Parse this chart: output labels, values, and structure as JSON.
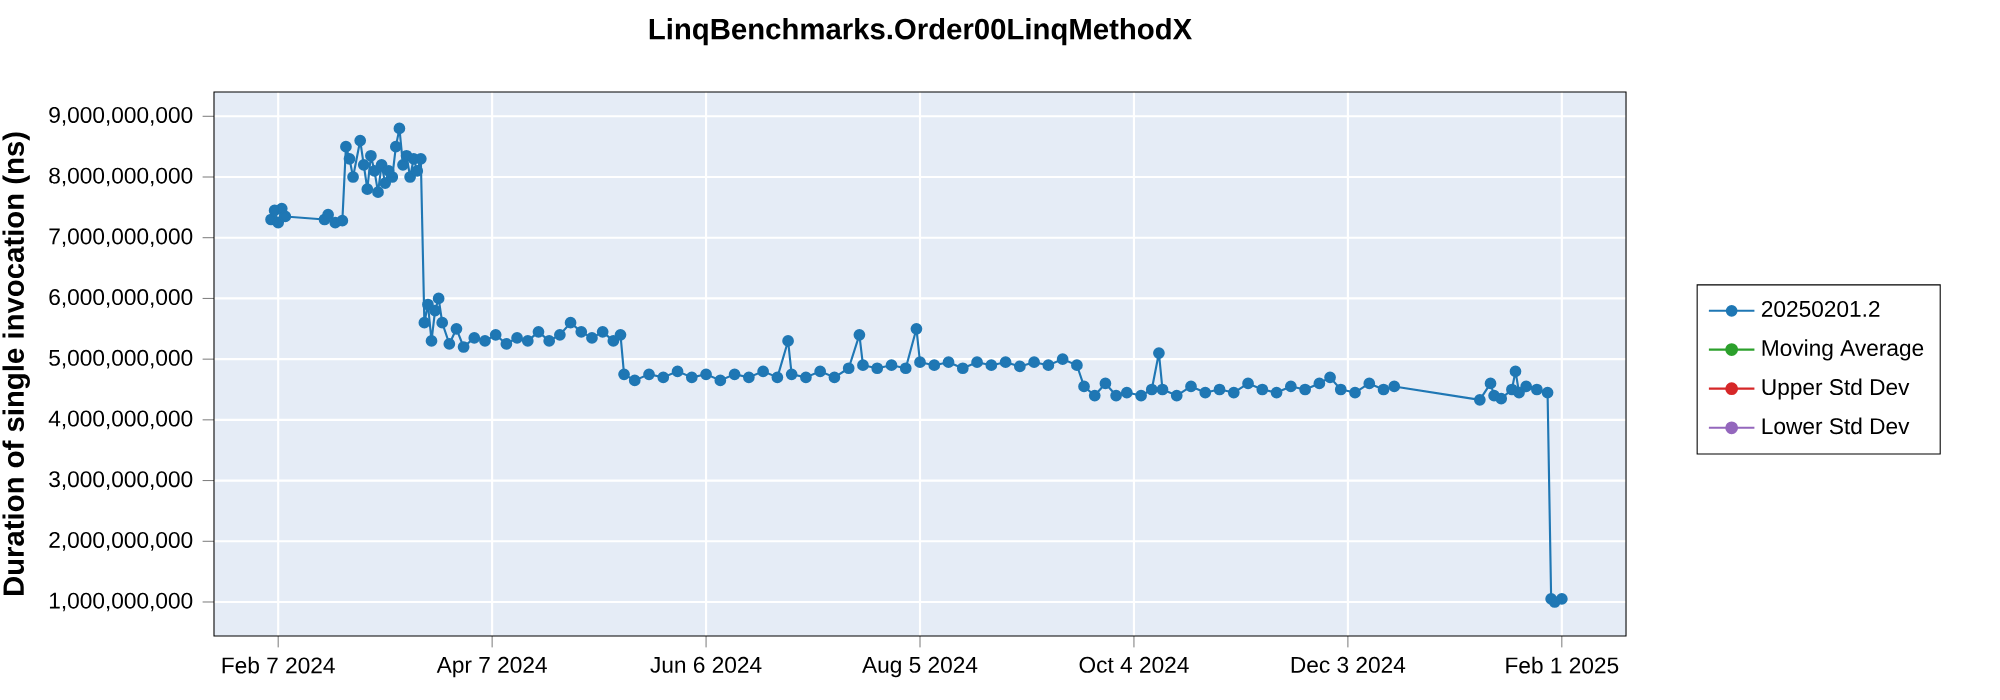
{
  "chart_data": {
    "type": "line",
    "title": "LinqBenchmarks.Order00LinqMethodX",
    "ylabel": "Duration of single invocation (ns)",
    "xlim": [
      "2024-01-20",
      "2025-02-19"
    ],
    "xticks": [
      {
        "value": "2024-02-07",
        "label": "Feb 7 2024"
      },
      {
        "value": "2024-04-07",
        "label": "Apr 7 2024"
      },
      {
        "value": "2024-06-06",
        "label": "Jun 6 2024"
      },
      {
        "value": "2024-08-05",
        "label": "Aug 5 2024"
      },
      {
        "value": "2024-10-04",
        "label": "Oct 4 2024"
      },
      {
        "value": "2024-12-03",
        "label": "Dec 3 2024"
      },
      {
        "value": "2025-02-01",
        "label": "Feb 1 2025"
      }
    ],
    "ylim": [
      440000000,
      9400000000
    ],
    "yticks": [
      {
        "value": 1000000000,
        "label": "1,000,000,000"
      },
      {
        "value": 2000000000,
        "label": "2,000,000,000"
      },
      {
        "value": 3000000000,
        "label": "3,000,000,000"
      },
      {
        "value": 4000000000,
        "label": "4,000,000,000"
      },
      {
        "value": 5000000000,
        "label": "5,000,000,000"
      },
      {
        "value": 6000000000,
        "label": "6,000,000,000"
      },
      {
        "value": 7000000000,
        "label": "7,000,000,000"
      },
      {
        "value": 8000000000,
        "label": "8,000,000,000"
      },
      {
        "value": 9000000000,
        "label": "9,000,000,000"
      }
    ],
    "grid": true,
    "legend": "right",
    "marker": "circle",
    "line_style": "solid",
    "x": [
      "2024-02-05",
      "2024-02-06",
      "2024-02-07",
      "2024-02-08",
      "2024-02-09",
      "2024-02-20",
      "2024-02-21",
      "2024-02-23",
      "2024-02-25",
      "2024-02-26",
      "2024-02-27",
      "2024-02-28",
      "2024-03-01",
      "2024-03-02",
      "2024-03-03",
      "2024-03-04",
      "2024-03-05",
      "2024-03-06",
      "2024-03-07",
      "2024-03-08",
      "2024-03-09",
      "2024-03-10",
      "2024-03-11",
      "2024-03-12",
      "2024-03-13",
      "2024-03-14",
      "2024-03-15",
      "2024-03-16",
      "2024-03-17",
      "2024-03-18",
      "2024-03-19",
      "2024-03-20",
      "2024-03-21",
      "2024-03-22",
      "2024-03-23",
      "2024-03-24",
      "2024-03-26",
      "2024-03-28",
      "2024-03-30",
      "2024-04-02",
      "2024-04-05",
      "2024-04-08",
      "2024-04-11",
      "2024-04-14",
      "2024-04-17",
      "2024-04-20",
      "2024-04-23",
      "2024-04-26",
      "2024-04-29",
      "2024-05-02",
      "2024-05-05",
      "2024-05-08",
      "2024-05-11",
      "2024-05-13",
      "2024-05-14",
      "2024-05-17",
      "2024-05-21",
      "2024-05-25",
      "2024-05-29",
      "2024-06-02",
      "2024-06-06",
      "2024-06-10",
      "2024-06-14",
      "2024-06-18",
      "2024-06-22",
      "2024-06-26",
      "2024-06-29",
      "2024-06-30",
      "2024-07-04",
      "2024-07-08",
      "2024-07-12",
      "2024-07-16",
      "2024-07-19",
      "2024-07-20",
      "2024-07-24",
      "2024-07-28",
      "2024-08-01",
      "2024-08-04",
      "2024-08-05",
      "2024-08-09",
      "2024-08-13",
      "2024-08-17",
      "2024-08-21",
      "2024-08-25",
      "2024-08-29",
      "2024-09-02",
      "2024-09-06",
      "2024-09-10",
      "2024-09-14",
      "2024-09-18",
      "2024-09-20",
      "2024-09-23",
      "2024-09-26",
      "2024-09-29",
      "2024-10-02",
      "2024-10-06",
      "2024-10-09",
      "2024-10-11",
      "2024-10-12",
      "2024-10-16",
      "2024-10-20",
      "2024-10-24",
      "2024-10-28",
      "2024-11-01",
      "2024-11-05",
      "2024-11-09",
      "2024-11-13",
      "2024-11-17",
      "2024-11-21",
      "2024-11-25",
      "2024-11-28",
      "2024-12-01",
      "2024-12-05",
      "2024-12-09",
      "2024-12-13",
      "2024-12-16",
      "2025-01-09",
      "2025-01-12",
      "2025-01-13",
      "2025-01-15",
      "2025-01-18",
      "2025-01-19",
      "2025-01-20",
      "2025-01-22",
      "2025-01-25",
      "2025-01-28",
      "2025-01-29",
      "2025-01-30",
      "2025-02-01"
    ],
    "series": [
      {
        "name": "20250201.2",
        "color": "#1f77b4",
        "values": [
          7300000000,
          7450000000,
          7250000000,
          7480000000,
          7350000000,
          7300000000,
          7380000000,
          7250000000,
          7280000000,
          8500000000,
          8300000000,
          8000000000,
          8600000000,
          8200000000,
          7800000000,
          8350000000,
          8100000000,
          7750000000,
          8200000000,
          7900000000,
          8100000000,
          8000000000,
          8500000000,
          8800000000,
          8200000000,
          8350000000,
          8000000000,
          8300000000,
          8100000000,
          8300000000,
          5600000000,
          5900000000,
          5300000000,
          5800000000,
          6000000000,
          5600000000,
          5250000000,
          5500000000,
          5200000000,
          5350000000,
          5300000000,
          5400000000,
          5250000000,
          5350000000,
          5300000000,
          5450000000,
          5300000000,
          5400000000,
          5600000000,
          5450000000,
          5350000000,
          5450000000,
          5300000000,
          5400000000,
          4750000000,
          4650000000,
          4750000000,
          4700000000,
          4800000000,
          4700000000,
          4750000000,
          4650000000,
          4750000000,
          4700000000,
          4800000000,
          4700000000,
          5300000000,
          4750000000,
          4700000000,
          4800000000,
          4700000000,
          4850000000,
          5400000000,
          4900000000,
          4850000000,
          4900000000,
          4850000000,
          5500000000,
          4950000000,
          4900000000,
          4950000000,
          4850000000,
          4950000000,
          4900000000,
          4950000000,
          4880000000,
          4950000000,
          4900000000,
          5000000000,
          4900000000,
          4550000000,
          4400000000,
          4600000000,
          4400000000,
          4450000000,
          4400000000,
          4500000000,
          5100000000,
          4500000000,
          4400000000,
          4550000000,
          4450000000,
          4500000000,
          4450000000,
          4600000000,
          4500000000,
          4450000000,
          4550000000,
          4500000000,
          4600000000,
          4700000000,
          4500000000,
          4450000000,
          4600000000,
          4500000000,
          4550000000,
          4330000000,
          4600000000,
          4400000000,
          4350000000,
          4500000000,
          4800000000,
          4450000000,
          4550000000,
          4500000000,
          4450000000,
          1050000000,
          1000000000,
          1050000000
        ]
      },
      {
        "name": "Moving Average",
        "color": "#2ca02c",
        "values": [
          null,
          null,
          null,
          null,
          null,
          null,
          null,
          null,
          null,
          null,
          null,
          null,
          null,
          null,
          null,
          null,
          null,
          null,
          null,
          null,
          null,
          null,
          null,
          null,
          null,
          null,
          null,
          null,
          null,
          null,
          null,
          null,
          null,
          null,
          null,
          null,
          null,
          null,
          null,
          null,
          null,
          null,
          null,
          null,
          null,
          null,
          null,
          null,
          null,
          null,
          null,
          null,
          null,
          null,
          null,
          null,
          null,
          null,
          null,
          null,
          null,
          null,
          null,
          null,
          null,
          null,
          null,
          null,
          null,
          null,
          null,
          null,
          null,
          null,
          null,
          null,
          null,
          null,
          null,
          null,
          null,
          null,
          null,
          null,
          null,
          null,
          null,
          null,
          null,
          null,
          null,
          null,
          null,
          null,
          null,
          null,
          null,
          null,
          null,
          null,
          null,
          null,
          null,
          null,
          null,
          null,
          null,
          null,
          null,
          null,
          null,
          null,
          null,
          null,
          null,
          null,
          null,
          null,
          null,
          null,
          null,
          null,
          null,
          null,
          null,
          null,
          null,
          null,
          null
        ]
      },
      {
        "name": "Upper Std Dev",
        "color": "#d62728",
        "values": [
          null,
          null,
          null,
          null,
          null,
          null,
          null,
          null,
          null,
          null,
          null,
          null,
          null,
          null,
          null,
          null,
          null,
          null,
          null,
          null,
          null,
          null,
          null,
          null,
          null,
          null,
          null,
          null,
          null,
          null,
          null,
          null,
          null,
          null,
          null,
          null,
          null,
          null,
          null,
          null,
          null,
          null,
          null,
          null,
          null,
          null,
          null,
          null,
          null,
          null,
          null,
          null,
          null,
          null,
          null,
          null,
          null,
          null,
          null,
          null,
          null,
          null,
          null,
          null,
          null,
          null,
          null,
          null,
          null,
          null,
          null,
          null,
          null,
          null,
          null,
          null,
          null,
          null,
          null,
          null,
          null,
          null,
          null,
          null,
          null,
          null,
          null,
          null,
          null,
          null,
          null,
          null,
          null,
          null,
          null,
          null,
          null,
          null,
          null,
          null,
          null,
          null,
          null,
          null,
          null,
          null,
          null,
          null,
          null,
          null,
          null,
          null,
          null,
          null,
          null,
          null,
          null,
          null,
          null,
          null,
          null,
          null,
          null,
          null,
          null,
          null,
          null,
          null,
          null
        ]
      },
      {
        "name": "Lower Std Dev",
        "color": "#9467bd",
        "values": [
          null,
          null,
          null,
          null,
          null,
          null,
          null,
          null,
          null,
          null,
          null,
          null,
          null,
          null,
          null,
          null,
          null,
          null,
          null,
          null,
          null,
          null,
          null,
          null,
          null,
          null,
          null,
          null,
          null,
          null,
          null,
          null,
          null,
          null,
          null,
          null,
          null,
          null,
          null,
          null,
          null,
          null,
          null,
          null,
          null,
          null,
          null,
          null,
          null,
          null,
          null,
          null,
          null,
          null,
          null,
          null,
          null,
          null,
          null,
          null,
          null,
          null,
          null,
          null,
          null,
          null,
          null,
          null,
          null,
          null,
          null,
          null,
          null,
          null,
          null,
          null,
          null,
          null,
          null,
          null,
          null,
          null,
          null,
          null,
          null,
          null,
          null,
          null,
          null,
          null,
          null,
          null,
          null,
          null,
          null,
          null,
          null,
          null,
          null,
          null,
          null,
          null,
          null,
          null,
          null,
          null,
          null,
          null,
          null,
          null,
          null,
          null,
          null,
          null,
          null,
          null,
          null,
          null,
          null,
          null,
          null,
          null,
          null,
          null,
          null,
          null,
          null,
          null,
          null
        ]
      }
    ]
  }
}
